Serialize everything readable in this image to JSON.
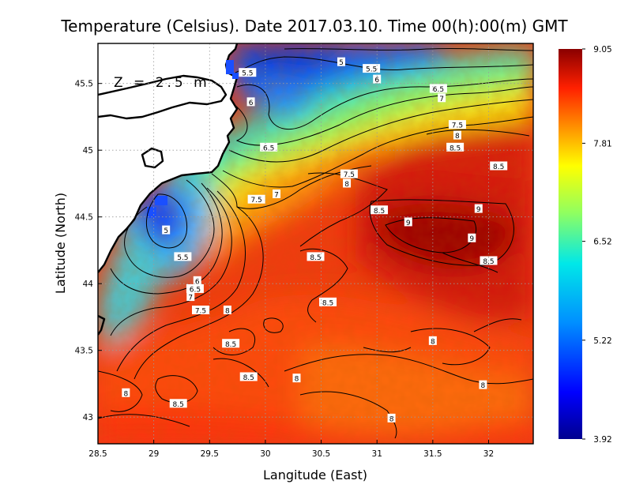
{
  "chart_data": {
    "type": "heatmap",
    "title": "Temperature (Celsius). Date 2017.03.10. Time 00(h):00(m)  GMT",
    "xlabel": "Langitude (East)",
    "ylabel": "Latitude (North)",
    "annotation": "Z = 2.5 m",
    "xlim": [
      28.5,
      32.4
    ],
    "ylim": [
      42.8,
      45.8
    ],
    "x_ticks": [
      28.5,
      29,
      29.5,
      30,
      30.5,
      31,
      31.5,
      32
    ],
    "x_tick_labels": [
      "28.5",
      "29",
      "29.5",
      "30",
      "30.5",
      "31",
      "31.5",
      "32"
    ],
    "y_ticks": [
      43,
      43.5,
      44,
      44.5,
      45,
      45.5
    ],
    "y_tick_labels": [
      "43",
      "43.5",
      "44",
      "44.5",
      "45",
      "45.5"
    ],
    "grid": true,
    "colorbar": {
      "min": 3.92,
      "max": 9.05,
      "tick_values": [
        9.05,
        7.81,
        6.52,
        5.22,
        3.92
      ],
      "tick_labels": [
        "9.05",
        "7.81",
        "6.52",
        "5.22",
        "3.92"
      ]
    },
    "contour_labels": [
      {
        "text": "5",
        "x": 30.68,
        "y": 45.66
      },
      {
        "text": "5.5",
        "x": 29.84,
        "y": 45.58
      },
      {
        "text": "5.5",
        "x": 30.95,
        "y": 45.61
      },
      {
        "text": "6",
        "x": 31.0,
        "y": 45.53
      },
      {
        "text": "6",
        "x": 29.87,
        "y": 45.36
      },
      {
        "text": "6.5",
        "x": 31.55,
        "y": 45.46
      },
      {
        "text": "7",
        "x": 31.58,
        "y": 45.39
      },
      {
        "text": "7.5",
        "x": 31.72,
        "y": 45.19
      },
      {
        "text": "8",
        "x": 31.72,
        "y": 45.11
      },
      {
        "text": "8.5",
        "x": 31.7,
        "y": 45.02
      },
      {
        "text": "6.5",
        "x": 30.03,
        "y": 45.02
      },
      {
        "text": "7.5",
        "x": 30.75,
        "y": 44.82
      },
      {
        "text": "8",
        "x": 30.73,
        "y": 44.75
      },
      {
        "text": "8.5",
        "x": 32.09,
        "y": 44.88
      },
      {
        "text": "7",
        "x": 30.1,
        "y": 44.67
      },
      {
        "text": "7.5",
        "x": 29.92,
        "y": 44.63
      },
      {
        "text": "8.5",
        "x": 31.02,
        "y": 44.55
      },
      {
        "text": "9",
        "x": 31.91,
        "y": 44.56
      },
      {
        "text": "9",
        "x": 31.28,
        "y": 44.46
      },
      {
        "text": "9",
        "x": 31.85,
        "y": 44.34
      },
      {
        "text": "5",
        "x": 29.11,
        "y": 44.4
      },
      {
        "text": "5.5",
        "x": 29.26,
        "y": 44.2
      },
      {
        "text": "8.5",
        "x": 30.45,
        "y": 44.2
      },
      {
        "text": "8.5",
        "x": 32.0,
        "y": 44.17
      },
      {
        "text": "6",
        "x": 29.39,
        "y": 44.02
      },
      {
        "text": "6.5",
        "x": 29.37,
        "y": 43.96
      },
      {
        "text": "7",
        "x": 29.33,
        "y": 43.9
      },
      {
        "text": "7.5",
        "x": 29.42,
        "y": 43.8
      },
      {
        "text": "8",
        "x": 29.66,
        "y": 43.8
      },
      {
        "text": "8.5",
        "x": 30.56,
        "y": 43.86
      },
      {
        "text": "8.5",
        "x": 29.69,
        "y": 43.55
      },
      {
        "text": "8",
        "x": 31.5,
        "y": 43.57
      },
      {
        "text": "8.5",
        "x": 29.85,
        "y": 43.3
      },
      {
        "text": "8",
        "x": 30.28,
        "y": 43.29
      },
      {
        "text": "8",
        "x": 31.95,
        "y": 43.24
      },
      {
        "text": "8",
        "x": 28.75,
        "y": 43.18
      },
      {
        "text": "8.5",
        "x": 29.22,
        "y": 43.1
      },
      {
        "text": "8",
        "x": 31.13,
        "y": 42.99
      }
    ]
  }
}
